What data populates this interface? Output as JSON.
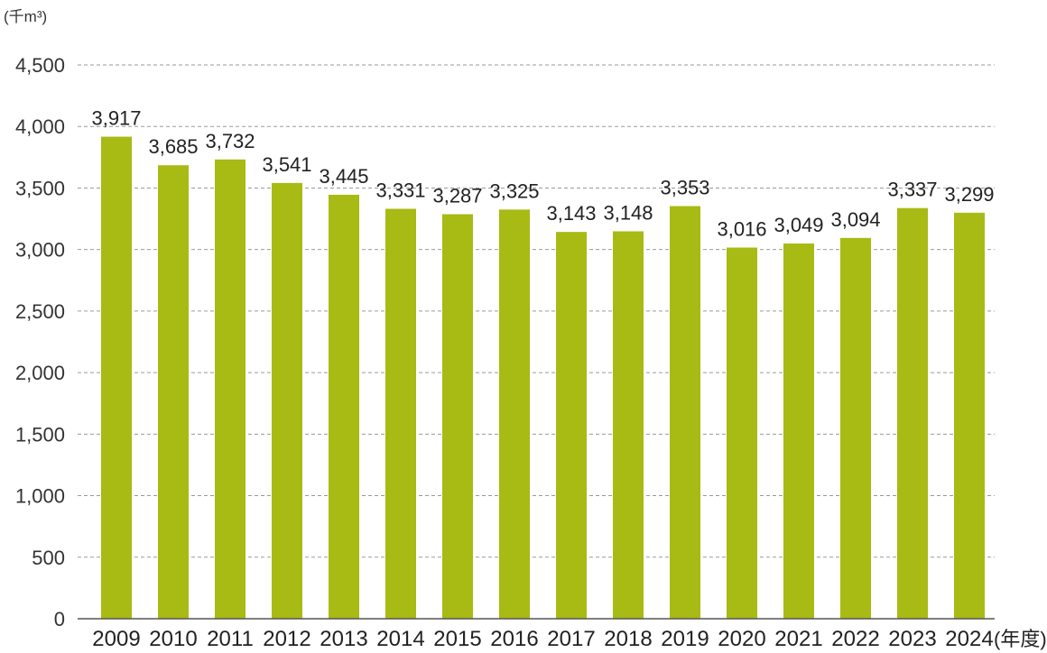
{
  "chart_data": {
    "type": "bar",
    "title": "",
    "ylabel": "(千m³)",
    "xlabel": "(年度)",
    "ylim": [
      0,
      4500
    ],
    "yticks": [
      0,
      500,
      1000,
      1500,
      2000,
      2500,
      3000,
      3500,
      4000,
      4500
    ],
    "ytick_labels": [
      "0",
      "500",
      "1,000",
      "1,500",
      "2,000",
      "2,500",
      "3,000",
      "3,500",
      "4,000",
      "4,500"
    ],
    "grid": true,
    "bar_color": "#a8ba14",
    "categories": [
      "2009",
      "2010",
      "2011",
      "2012",
      "2013",
      "2014",
      "2015",
      "2016",
      "2017",
      "2018",
      "2019",
      "2020",
      "2021",
      "2022",
      "2023",
      "2024"
    ],
    "values": [
      3917,
      3685,
      3732,
      3541,
      3445,
      3331,
      3287,
      3325,
      3143,
      3148,
      3353,
      3016,
      3049,
      3094,
      3337,
      3299
    ],
    "value_labels": [
      "3,917",
      "3,685",
      "3,732",
      "3,541",
      "3,445",
      "3,331",
      "3,287",
      "3,325",
      "3,143",
      "3,148",
      "3,353",
      "3,016",
      "3,049",
      "3,094",
      "3,337",
      "3,299"
    ]
  }
}
